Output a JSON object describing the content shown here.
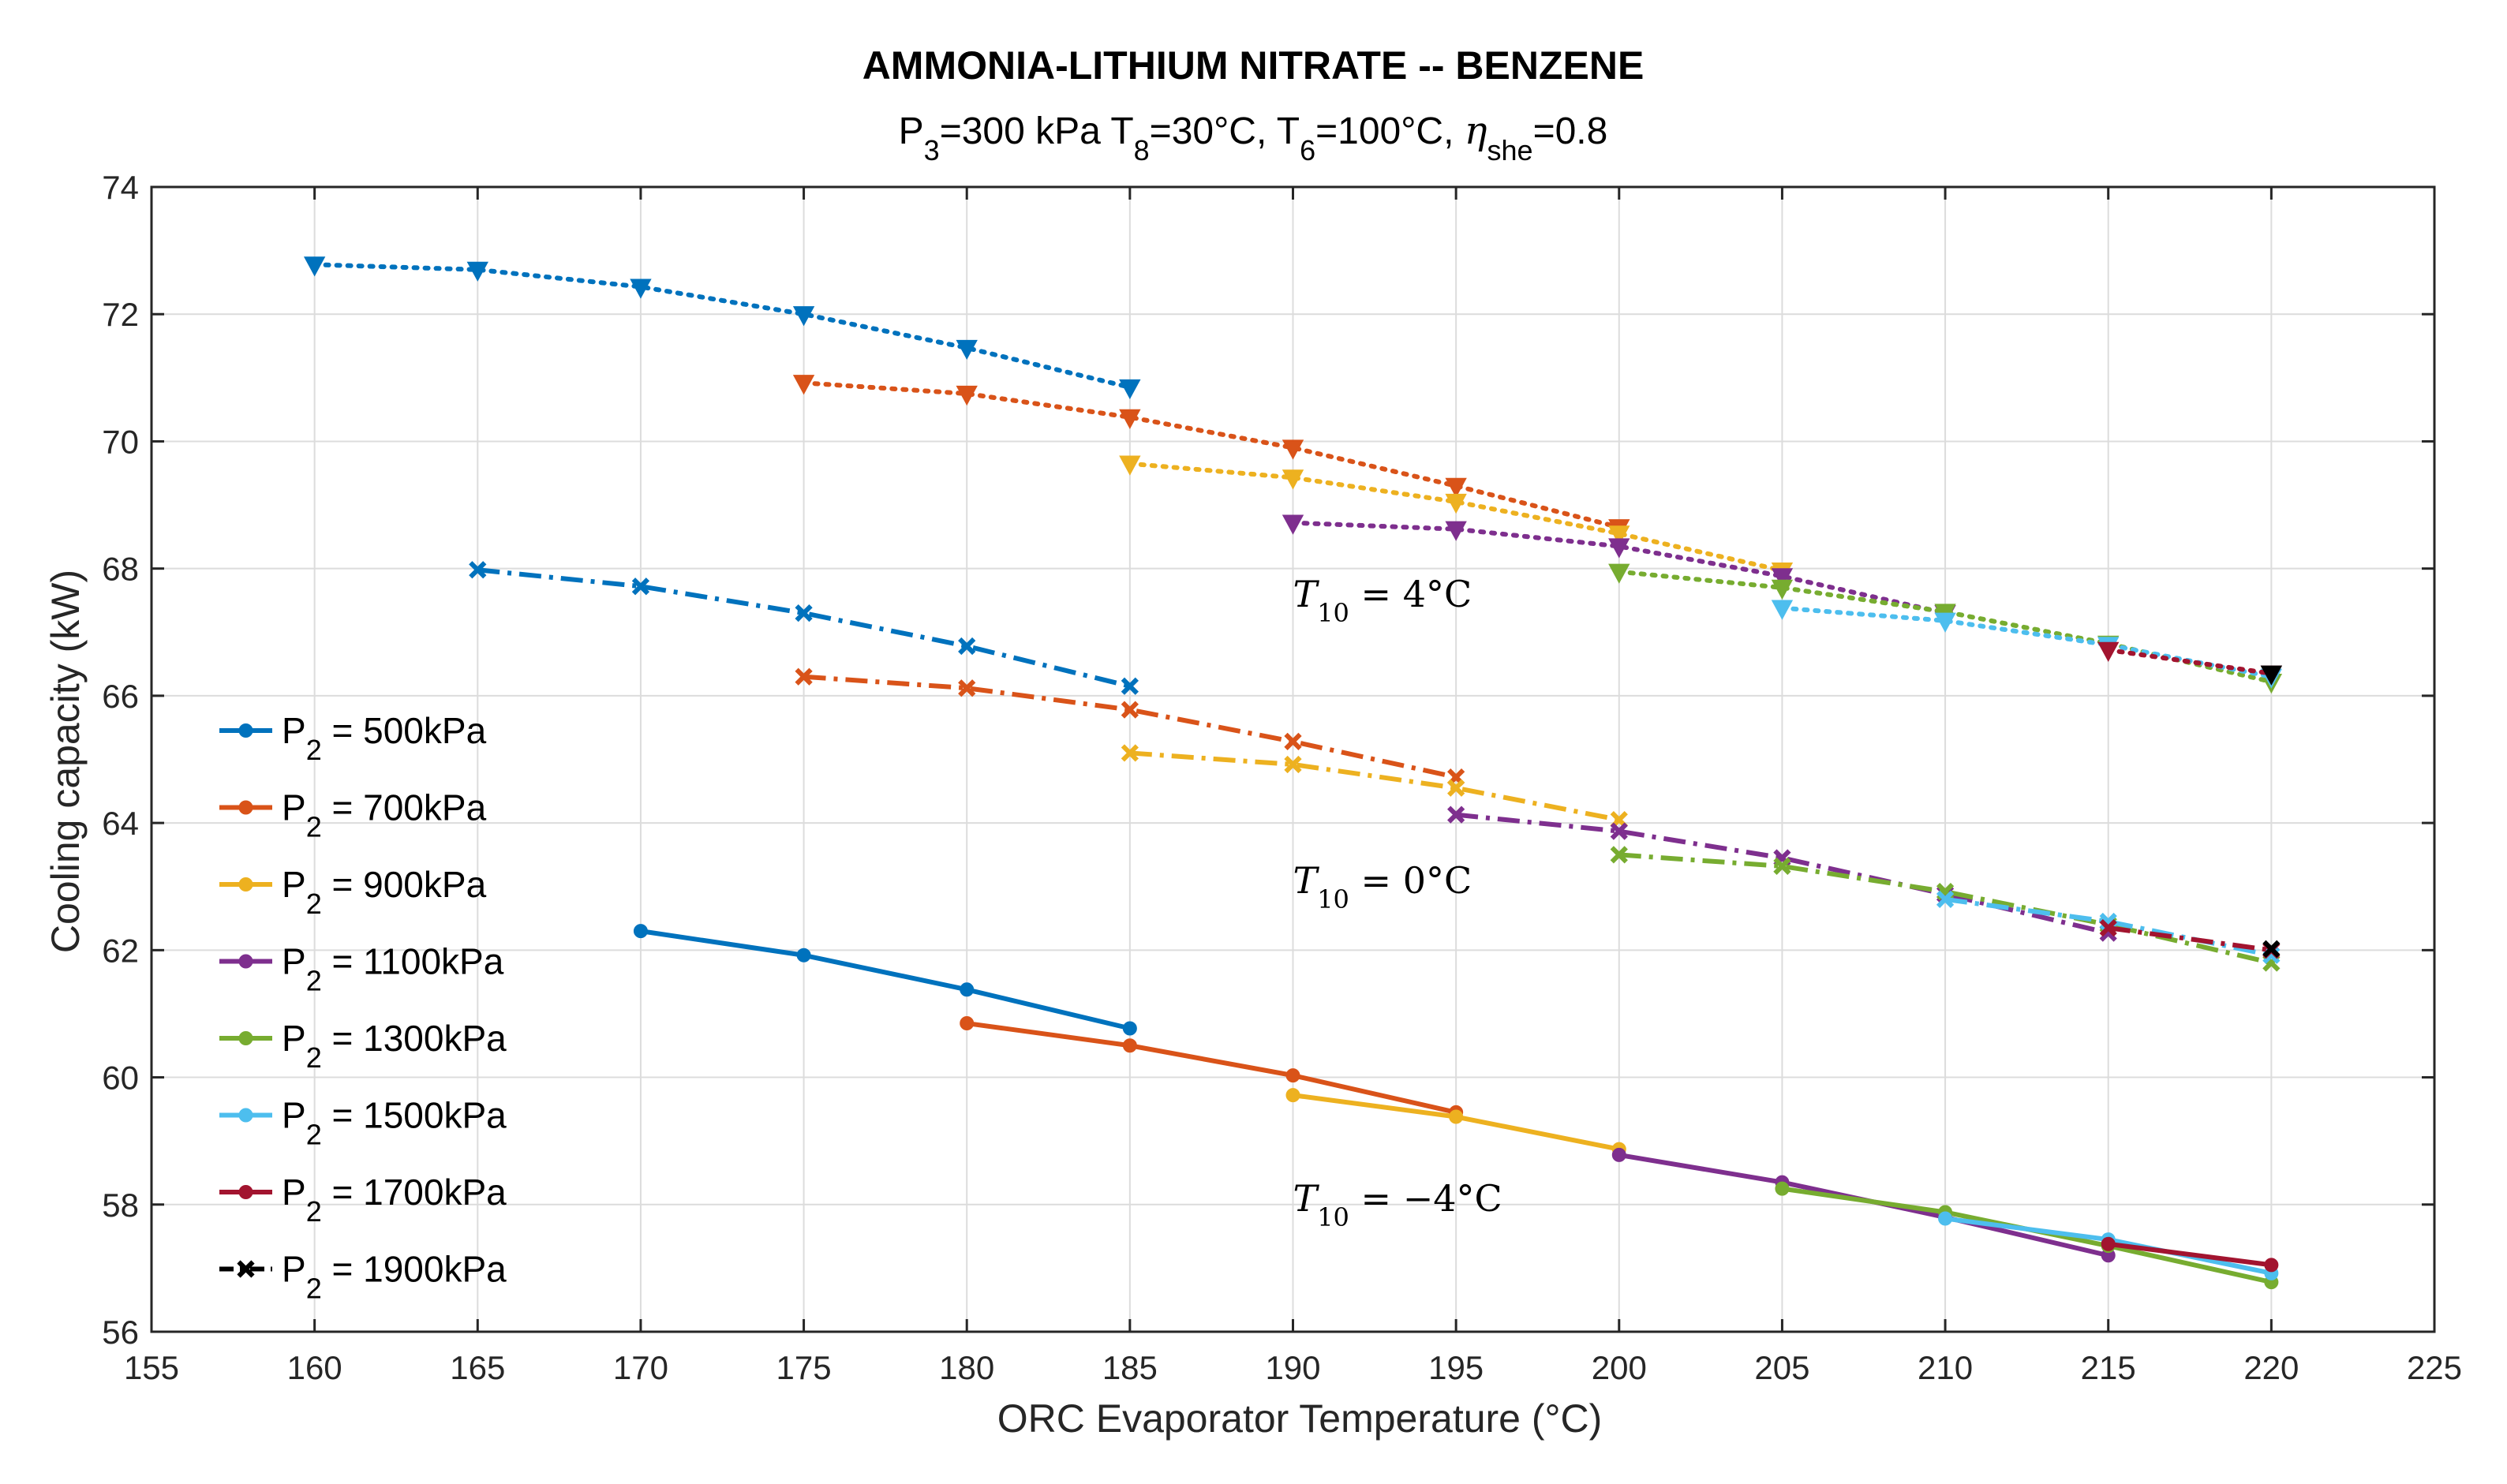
{
  "chart_data": {
    "type": "line",
    "title": "AMMONIA-LITHIUM NITRATE -- BENZENE",
    "subtitle": {
      "parts": [
        {
          "t": "P",
          "s": "n"
        },
        {
          "t": "3",
          "s": "sub"
        },
        {
          "t": "=300 kPa T",
          "s": "n"
        },
        {
          "t": "8",
          "s": "sub"
        },
        {
          "t": "=30°C, T",
          "s": "n"
        },
        {
          "t": "6",
          "s": "sub"
        },
        {
          "t": "=100°C, ",
          "s": "n"
        },
        {
          "t": "η",
          "s": "ital"
        },
        {
          "t": "she",
          "s": "sub"
        },
        {
          "t": "=0.8",
          "s": "n"
        }
      ]
    },
    "xlabel": "ORC Evaporator Temperature (°C)",
    "ylabel": "Cooling capacity (kW)",
    "xlim": [
      155,
      225
    ],
    "ylim": [
      56,
      74
    ],
    "xticks": [
      155,
      160,
      165,
      170,
      175,
      180,
      185,
      190,
      195,
      200,
      205,
      210,
      215,
      220,
      225
    ],
    "yticks": [
      56,
      58,
      60,
      62,
      64,
      66,
      68,
      70,
      72,
      74
    ],
    "grid": true,
    "legend_position": "left",
    "legend": [
      {
        "prefix": "P",
        "sub": "2",
        "text": " = 500kPa",
        "color": "#0072BD",
        "style": "solid",
        "marker": "dot"
      },
      {
        "prefix": "P",
        "sub": "2",
        "text": " = 700kPa",
        "color": "#D95319",
        "style": "solid",
        "marker": "dot"
      },
      {
        "prefix": "P",
        "sub": "2",
        "text": " = 900kPa",
        "color": "#EDB120",
        "style": "solid",
        "marker": "dot"
      },
      {
        "prefix": "P",
        "sub": "2",
        "text": " = 1100kPa",
        "color": "#7E2F8E",
        "style": "solid",
        "marker": "dot"
      },
      {
        "prefix": "P",
        "sub": "2",
        "text": " = 1300kPa",
        "color": "#77AC30",
        "style": "solid",
        "marker": "dot"
      },
      {
        "prefix": "P",
        "sub": "2",
        "text": " = 1500kPa",
        "color": "#4DBEEE",
        "style": "solid",
        "marker": "dot"
      },
      {
        "prefix": "P",
        "sub": "2",
        "text": " = 1700kPa",
        "color": "#A2142F",
        "style": "solid",
        "marker": "dot"
      },
      {
        "prefix": "P",
        "sub": "2",
        "text": " = 1900kPa",
        "color": "#000000",
        "style": "dashdot",
        "marker": "x"
      }
    ],
    "annotations": [
      {
        "var": "T",
        "sub": "10",
        "rest": " = 4°C",
        "x": 190,
        "y": 67.4
      },
      {
        "var": "T",
        "sub": "10",
        "rest": " = 0°C",
        "x": 190,
        "y": 62.9
      },
      {
        "var": "T",
        "sub": "10",
        "rest": " = −4°C",
        "x": 190,
        "y": 57.9
      }
    ],
    "series": [
      {
        "group": "T10 = -4°C",
        "p2": "500kPa",
        "color": "#0072BD",
        "style": "solid",
        "marker": "dot",
        "x": [
          170,
          175,
          180,
          185
        ],
        "y": [
          62.3,
          61.92,
          61.38,
          60.77
        ]
      },
      {
        "group": "T10 = -4°C",
        "p2": "700kPa",
        "color": "#D95319",
        "style": "solid",
        "marker": "dot",
        "x": [
          180,
          185,
          190,
          195
        ],
        "y": [
          60.85,
          60.5,
          60.03,
          59.45
        ]
      },
      {
        "group": "T10 = -4°C",
        "p2": "900kPa",
        "color": "#EDB120",
        "style": "solid",
        "marker": "dot",
        "x": [
          190,
          195,
          200
        ],
        "y": [
          59.72,
          59.38,
          58.87
        ]
      },
      {
        "group": "T10 = -4°C",
        "p2": "1100kPa",
        "color": "#7E2F8E",
        "style": "solid",
        "marker": "dot",
        "x": [
          200,
          205,
          210,
          215
        ],
        "y": [
          58.78,
          58.35,
          57.8,
          57.2
        ]
      },
      {
        "group": "T10 = -4°C",
        "p2": "1300kPa",
        "color": "#77AC30",
        "style": "solid",
        "marker": "dot",
        "x": [
          205,
          210,
          215,
          220
        ],
        "y": [
          58.25,
          57.88,
          57.35,
          56.78
        ]
      },
      {
        "group": "T10 = -4°C",
        "p2": "1500kPa",
        "color": "#4DBEEE",
        "style": "solid",
        "marker": "dot",
        "x": [
          210,
          215,
          220
        ],
        "y": [
          57.78,
          57.45,
          56.92
        ]
      },
      {
        "group": "T10 = -4°C",
        "p2": "1700kPa",
        "color": "#A2142F",
        "style": "solid",
        "marker": "dot",
        "x": [
          215,
          220
        ],
        "y": [
          57.38,
          57.05
        ]
      },
      {
        "group": "T10 = 0°C",
        "p2": "500kPa",
        "color": "#0072BD",
        "style": "dashdot",
        "marker": "x",
        "x": [
          165,
          170,
          175,
          180,
          185
        ],
        "y": [
          67.98,
          67.72,
          67.3,
          66.78,
          66.15
        ]
      },
      {
        "group": "T10 = 0°C",
        "p2": "700kPa",
        "color": "#D95319",
        "style": "dashdot",
        "marker": "x",
        "x": [
          175,
          180,
          185,
          190,
          195
        ],
        "y": [
          66.3,
          66.12,
          65.78,
          65.28,
          64.72
        ]
      },
      {
        "group": "T10 = 0°C",
        "p2": "900kPa",
        "color": "#EDB120",
        "style": "dashdot",
        "marker": "x",
        "x": [
          185,
          190,
          195,
          200
        ],
        "y": [
          65.1,
          64.92,
          64.55,
          64.05
        ]
      },
      {
        "group": "T10 = 0°C",
        "p2": "1100kPa",
        "color": "#7E2F8E",
        "style": "dashdot",
        "marker": "x",
        "x": [
          195,
          200,
          205,
          210,
          215
        ],
        "y": [
          64.13,
          63.87,
          63.45,
          62.88,
          62.27
        ]
      },
      {
        "group": "T10 = 0°C",
        "p2": "1300kPa",
        "color": "#77AC30",
        "style": "dashdot",
        "marker": "x",
        "x": [
          200,
          205,
          210,
          215,
          220
        ],
        "y": [
          63.5,
          63.32,
          62.92,
          62.4,
          61.8
        ]
      },
      {
        "group": "T10 = 0°C",
        "p2": "1500kPa",
        "color": "#4DBEEE",
        "style": "dashdot",
        "marker": "x",
        "x": [
          210,
          215,
          220
        ],
        "y": [
          62.8,
          62.45,
          61.92
        ]
      },
      {
        "group": "T10 = 0°C",
        "p2": "1700kPa",
        "color": "#A2142F",
        "style": "dashdot",
        "marker": "x",
        "x": [
          215,
          220
        ],
        "y": [
          62.35,
          62.0
        ]
      },
      {
        "group": "T10 = 0°C",
        "p2": "1900kPa",
        "color": "#000000",
        "style": "dashdot",
        "marker": "x",
        "x": [
          220
        ],
        "y": [
          62.02
        ]
      },
      {
        "group": "T10 = 4°C",
        "p2": "500kPa",
        "color": "#0072BD",
        "style": "dotted",
        "marker": "tri",
        "x": [
          160,
          165,
          170,
          175,
          180,
          185
        ],
        "y": [
          72.78,
          72.7,
          72.43,
          72.0,
          71.47,
          70.85
        ]
      },
      {
        "group": "T10 = 4°C",
        "p2": "700kPa",
        "color": "#D95319",
        "style": "dotted",
        "marker": "tri",
        "x": [
          175,
          180,
          185,
          190,
          195,
          200
        ],
        "y": [
          70.92,
          70.75,
          70.38,
          69.9,
          69.3,
          68.65
        ]
      },
      {
        "group": "T10 = 4°C",
        "p2": "900kPa",
        "color": "#EDB120",
        "style": "dotted",
        "marker": "tri",
        "x": [
          185,
          190,
          195,
          200,
          205
        ],
        "y": [
          69.65,
          69.43,
          69.05,
          68.55,
          67.97
        ]
      },
      {
        "group": "T10 = 4°C",
        "p2": "1100kPa",
        "color": "#7E2F8E",
        "style": "dotted",
        "marker": "tri",
        "x": [
          190,
          195,
          200,
          205,
          210
        ],
        "y": [
          68.72,
          68.62,
          68.35,
          67.88,
          67.3
        ]
      },
      {
        "group": "T10 = 4°C",
        "p2": "1300kPa",
        "color": "#77AC30",
        "style": "dotted",
        "marker": "tri",
        "x": [
          200,
          205,
          210,
          215,
          220
        ],
        "y": [
          67.95,
          67.7,
          67.32,
          66.82,
          66.22
        ]
      },
      {
        "group": "T10 = 4°C",
        "p2": "1500kPa",
        "color": "#4DBEEE",
        "style": "dotted",
        "marker": "tri",
        "x": [
          205,
          210,
          215,
          220
        ],
        "y": [
          67.38,
          67.18,
          66.8,
          66.3
        ]
      },
      {
        "group": "T10 = 4°C",
        "p2": "1700kPa",
        "color": "#A2142F",
        "style": "dotted",
        "marker": "tri",
        "x": [
          215,
          220
        ],
        "y": [
          66.72,
          66.35
        ]
      },
      {
        "group": "T10 = 4°C",
        "p2": "1900kPa",
        "color": "#000000",
        "style": "dotted",
        "marker": "tri",
        "x": [
          220
        ],
        "y": [
          66.35
        ]
      }
    ]
  }
}
